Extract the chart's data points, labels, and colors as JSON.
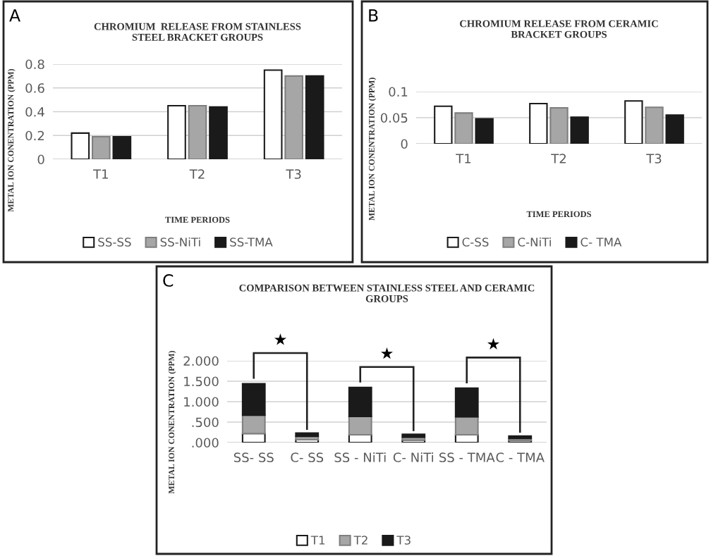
{
  "chart_data": [
    {
      "type": "bar",
      "title": "CHROMIUM  RELEASE FROM STAINLESS\nSTEEL BRACKET GROUPS",
      "xlabel": "TIME PERIODS",
      "ylabel": "METAL ION CONENTRATION (PPM)",
      "annotations": [
        "A"
      ],
      "categories": [
        "T1",
        "T2",
        "T3"
      ],
      "series": [
        {
          "name": "SS-SS",
          "color": "#ffffff",
          "values": [
            0.22,
            0.45,
            0.75
          ]
        },
        {
          "name": "SS-NiTi",
          "color": "#a6a6a6",
          "values": [
            0.19,
            0.45,
            0.7
          ]
        },
        {
          "name": "SS-TMA",
          "color": "#1a1a1a",
          "values": [
            0.19,
            0.44,
            0.7
          ]
        }
      ],
      "ylim": [
        0,
        0.8
      ],
      "yticks": [
        0,
        0.2,
        0.4,
        0.6,
        0.8
      ],
      "grid": "y",
      "legend": "bottom"
    },
    {
      "type": "bar",
      "title": "CHROMIUM RELEASE FROM CERAMIC\nBRACKET GROUPS",
      "xlabel": "TIME PERIODS",
      "ylabel": "METAL ION CONENTRATION (PPM)",
      "annotations": [
        "B"
      ],
      "categories": [
        "T1",
        "T2",
        "T3"
      ],
      "series": [
        {
          "name": "C-SS",
          "color": "#ffffff",
          "values": [
            0.072,
            0.077,
            0.082
          ]
        },
        {
          "name": "C-NiTi",
          "color": "#a6a6a6",
          "values": [
            0.059,
            0.069,
            0.07
          ]
        },
        {
          "name": "C- TMA",
          "color": "#1a1a1a",
          "values": [
            0.048,
            0.051,
            0.055
          ]
        }
      ],
      "ylim": [
        0,
        0.1
      ],
      "yticks": [
        0,
        0.05,
        0.1
      ],
      "grid": "y",
      "legend": "bottom"
    },
    {
      "type": "bar",
      "stacked": true,
      "title": "COMPARISON BETWEEN STAINLESS STEEL AND CERAMIC\nGROUPS",
      "ylabel": "METAL ION CONENTRATION (PPM)",
      "annotations": [
        "C",
        "★",
        "★",
        "★"
      ],
      "categories": [
        "SS- SS",
        "C- SS",
        "SS - NiTi",
        "C- NiTi",
        "SS - TMA",
        "C - TMA"
      ],
      "series": [
        {
          "name": "T1",
          "color": "#ffffff",
          "values": [
            0.22,
            0.07,
            0.19,
            0.06,
            0.19,
            0.05
          ]
        },
        {
          "name": "T2",
          "color": "#a6a6a6",
          "values": [
            0.45,
            0.08,
            0.45,
            0.07,
            0.44,
            0.05
          ]
        },
        {
          "name": "T3",
          "color": "#1a1a1a",
          "values": [
            0.77,
            0.08,
            0.71,
            0.07,
            0.7,
            0.06
          ]
        }
      ],
      "ylim": [
        0,
        2.0
      ],
      "yticks": [
        {
          "value": 0,
          "label": ".000"
        },
        {
          "value": 0.5,
          "label": ".500"
        },
        {
          "value": 1,
          "label": "1.000"
        },
        {
          "value": 1.5,
          "label": "1.500"
        },
        {
          "value": 2,
          "label": "2.000"
        }
      ],
      "grid": "y",
      "legend": "bottom"
    }
  ]
}
